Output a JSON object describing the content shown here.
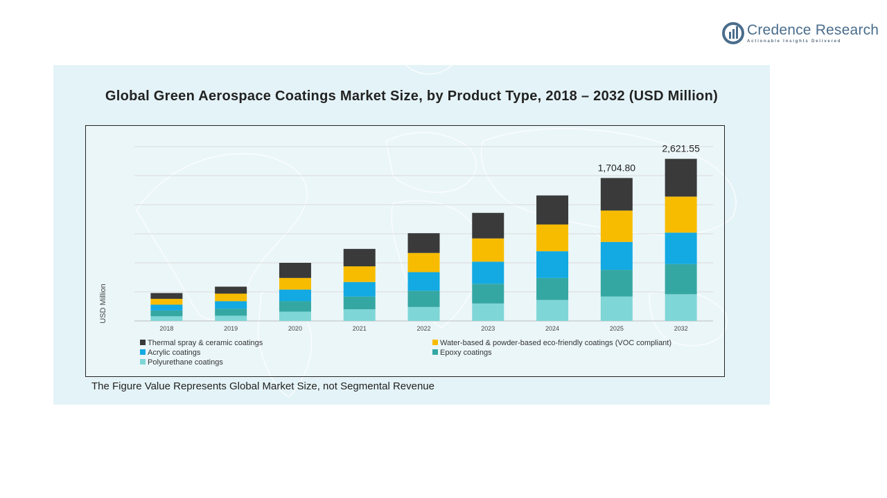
{
  "brand": {
    "name": "Credence Research",
    "tagline": "Actionable Insights Delivered"
  },
  "footnote": "The Figure Value Represents Global Market Size, not Segmental Revenue",
  "chart_data": {
    "type": "bar",
    "stacked": true,
    "title": "Global Green Aerospace Coatings Market Size, by Product Type, 2018 – 2032 (USD Million)",
    "xlabel": "",
    "ylabel": "USD Million",
    "categories": [
      "2018",
      "2019",
      "2020",
      "2021",
      "2022",
      "2023",
      "2024",
      "2025",
      "2032"
    ],
    "ylim": [
      0,
      3000
    ],
    "grid": true,
    "legend_position": "bottom",
    "series": [
      {
        "name": "Polyurethane coatings",
        "color": "#7fd6d6",
        "values": [
          80,
          90,
          160,
          200,
          240,
          300,
          360,
          420,
          460
        ]
      },
      {
        "name": "Epoxy coatings",
        "color": "#35a7a3",
        "values": [
          100,
          120,
          180,
          220,
          280,
          340,
          380,
          460,
          520
        ]
      },
      {
        "name": "Acrylic coatings",
        "color": "#13a9e2",
        "values": [
          100,
          130,
          200,
          250,
          320,
          380,
          460,
          480,
          540
        ]
      },
      {
        "name": "Water-based & powder-based eco-friendly coatings (VOC compliant)",
        "color": "#f7bc00",
        "values": [
          100,
          130,
          200,
          270,
          330,
          400,
          460,
          540,
          620
        ]
      },
      {
        "name": "Thermal spray & ceramic coatings",
        "color": "#3a3a3a",
        "values": [
          100,
          120,
          260,
          300,
          340,
          440,
          500,
          560,
          650
        ]
      }
    ],
    "data_labels": [
      {
        "category": "2025",
        "text": "1,704.80"
      },
      {
        "category": "2032",
        "text": "2,621.55"
      }
    ],
    "legend_order": [
      "Thermal spray & ceramic coatings",
      "Water-based & powder-based eco-friendly coatings (VOC compliant)",
      "Acrylic coatings",
      "Epoxy coatings",
      "Polyurethane coatings"
    ]
  }
}
